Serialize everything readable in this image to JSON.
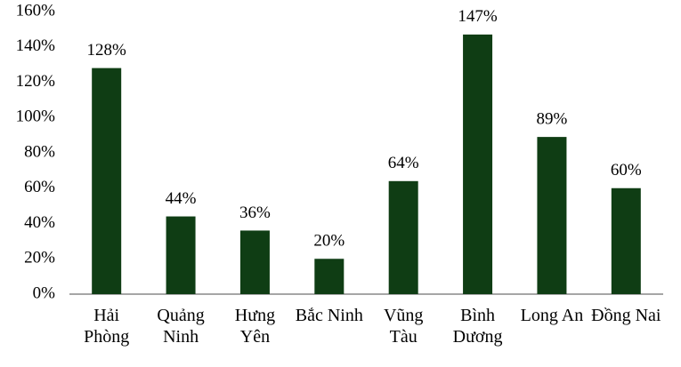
{
  "chart_data": {
    "type": "bar",
    "categories": [
      "Hải Phòng",
      "Quảng Ninh",
      "Hưng Yên",
      "Bắc Ninh",
      "Vũng Tàu",
      "Bình Dương",
      "Long An",
      "Đồng Nai"
    ],
    "values": [
      128,
      44,
      36,
      20,
      64,
      147,
      89,
      60
    ],
    "value_labels": [
      "128%",
      "44%",
      "36%",
      "20%",
      "64%",
      "147%",
      "89%",
      "60%"
    ],
    "color": "#0f3d14",
    "ylim": [
      0,
      160
    ],
    "yticks": [
      {
        "value": 0,
        "label": "0%"
      },
      {
        "value": 20,
        "label": "20%"
      },
      {
        "value": 40,
        "label": "40%"
      },
      {
        "value": 60,
        "label": "60%"
      },
      {
        "value": 80,
        "label": "80%"
      },
      {
        "value": 100,
        "label": "100%"
      },
      {
        "value": 120,
        "label": "120%"
      },
      {
        "value": 140,
        "label": "140%"
      },
      {
        "value": 160,
        "label": "160%"
      }
    ],
    "grid": false
  }
}
